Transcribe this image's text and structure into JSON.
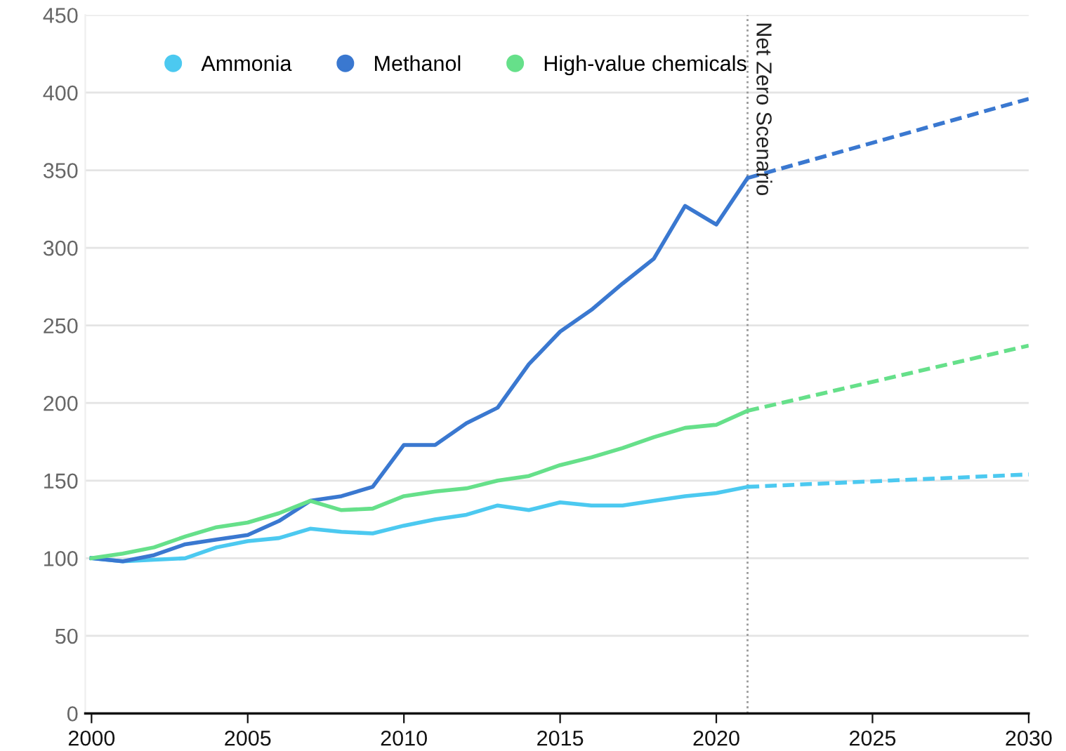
{
  "chart_data": {
    "type": "line",
    "xlim": [
      1999.8,
      2030
    ],
    "xticks": [
      2000,
      2005,
      2010,
      2015,
      2020,
      2025,
      2030
    ],
    "ylim": [
      0,
      450
    ],
    "yticks": [
      0,
      50,
      100,
      150,
      200,
      250,
      300,
      350,
      400,
      450
    ],
    "grid": "y",
    "legend": "top left",
    "marker": "none",
    "series": [
      {
        "name": "Ammonia",
        "color": "#4cc9f0",
        "x": [
          2000,
          2001,
          2002,
          2003,
          2004,
          2005,
          2006,
          2007,
          2008,
          2009,
          2010,
          2011,
          2012,
          2013,
          2014,
          2015,
          2016,
          2017,
          2018,
          2019,
          2020,
          2021
        ],
        "values": [
          100,
          98,
          99,
          100,
          107,
          111,
          113,
          119,
          117,
          116,
          121,
          125,
          128,
          134,
          131,
          136,
          134,
          134,
          137,
          140,
          142,
          146
        ]
      },
      {
        "name": "Methanol",
        "color": "#3a78d0",
        "x": [
          2000,
          2001,
          2002,
          2003,
          2004,
          2005,
          2006,
          2007,
          2008,
          2009,
          2010,
          2011,
          2012,
          2013,
          2014,
          2015,
          2016,
          2017,
          2018,
          2019,
          2020,
          2021
        ],
        "values": [
          100,
          98,
          102,
          109,
          112,
          115,
          124,
          137,
          140,
          146,
          173,
          173,
          187,
          197,
          225,
          246,
          260,
          277,
          293,
          327,
          315,
          345
        ]
      },
      {
        "name": "High-value chemicals",
        "color": "#66e08a",
        "x": [
          2000,
          2001,
          2002,
          2003,
          2004,
          2005,
          2006,
          2007,
          2008,
          2009,
          2010,
          2011,
          2012,
          2013,
          2014,
          2015,
          2016,
          2017,
          2018,
          2019,
          2020,
          2021
        ],
        "values": [
          100,
          103,
          107,
          114,
          120,
          123,
          129,
          137,
          131,
          132,
          140,
          143,
          145,
          150,
          153,
          160,
          165,
          171,
          178,
          184,
          186,
          195
        ]
      },
      {
        "color": "#4cc9f0",
        "line_style": "dashed",
        "x": [
          2021,
          2030
        ],
        "values": [
          146,
          154
        ]
      },
      {
        "color": "#3a78d0",
        "line_style": "dashed",
        "x": [
          2021,
          2030
        ],
        "values": [
          345,
          396
        ]
      },
      {
        "color": "#66e08a",
        "line_style": "dashed",
        "x": [
          2021,
          2030
        ],
        "values": [
          195,
          237
        ]
      }
    ],
    "ref_lines": [
      {
        "axis": "x",
        "value": 2021,
        "label": "Net Zero Scenario",
        "color": "#999999",
        "line_style": "dotted"
      }
    ]
  }
}
